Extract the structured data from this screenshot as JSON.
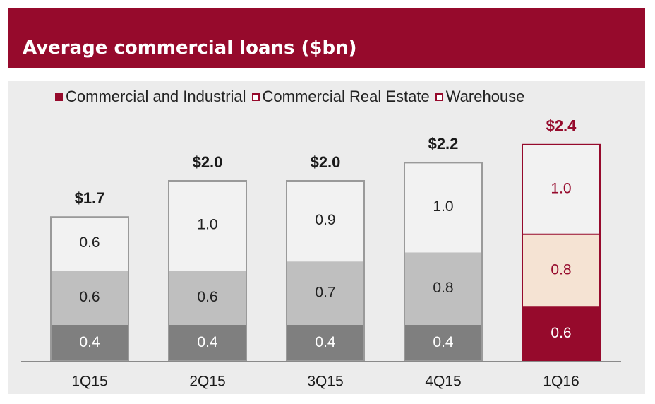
{
  "header": {
    "title": "Average commercial loans ($bn)"
  },
  "colors": {
    "brand": "#960a2c",
    "panel_bg": "#ececec",
    "c_and_i_grey": "#7f7f7f",
    "cre_grey": "#bfbfbf",
    "warehouse_grey": "#f2f2f2",
    "cre_highlight": "#f5e3d3",
    "warehouse_highlight": "#f2f2f2"
  },
  "legend": {
    "items": [
      {
        "label": "Commercial and Industrial",
        "swatch": "filled"
      },
      {
        "label": "Commercial Real Estate",
        "swatch": "outline"
      },
      {
        "label": "Warehouse",
        "swatch": "outline"
      }
    ]
  },
  "chart_data": {
    "type": "bar",
    "stacked": true,
    "categories": [
      "1Q15",
      "2Q15",
      "3Q15",
      "4Q15",
      "1Q16"
    ],
    "series": [
      {
        "name": "Commercial and Industrial",
        "values": [
          0.4,
          0.4,
          0.4,
          0.4,
          0.6
        ],
        "labels": [
          "0.4",
          "0.4",
          "0.4",
          "0.4",
          "0.6"
        ]
      },
      {
        "name": "Commercial Real Estate",
        "values": [
          0.6,
          0.6,
          0.7,
          0.8,
          0.8
        ],
        "labels": [
          "0.6",
          "0.6",
          "0.7",
          "0.8",
          "0.8"
        ]
      },
      {
        "name": "Warehouse",
        "values": [
          0.6,
          1.0,
          0.9,
          1.0,
          1.0
        ],
        "labels": [
          "0.6",
          "1.0",
          "0.9",
          "1.0",
          "1.0"
        ]
      }
    ],
    "totals": [
      "$1.7",
      "$2.0",
      "$2.0",
      "$2.2",
      "$2.4"
    ],
    "highlighted_category": "1Q16",
    "title": "Average commercial loans ($bn)",
    "legend_position": "top",
    "grid": false,
    "ylim": [
      0,
      2.4
    ]
  }
}
